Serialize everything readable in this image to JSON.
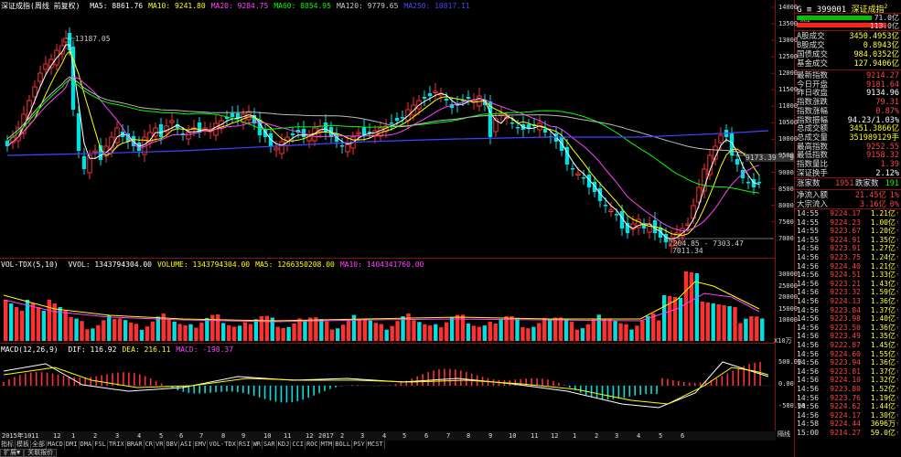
{
  "main": {
    "title": "深证成指(周线 前复权)",
    "ma": [
      {
        "label": "MA5: 8861.76",
        "color": "#ffffff"
      },
      {
        "label": "MA10: 9241.80",
        "color": "#ffff00"
      },
      {
        "label": "MA20: 9284.75",
        "color": "#ff44ff"
      },
      {
        "label": "MA60: 8854.95",
        "color": "#00ff00"
      },
      {
        "label": "MA120: 9779.65",
        "color": "#cccccc"
      },
      {
        "label": "MA250: 10817.11",
        "color": "#4444ff"
      }
    ],
    "y_labels": [
      "14000",
      "13500",
      "13000",
      "12500",
      "12000",
      "11500",
      "11000",
      "10500",
      "10000",
      "9500",
      "9000",
      "8500",
      "8000",
      "7500",
      "7000"
    ],
    "annot_high": "13187.05",
    "annot_low1": "7204.85 - 7303.47",
    "annot_low2": "7011.34",
    "annot_right": "9173.39 - 9333"
  },
  "vol": {
    "title": "VOL-TDX(5,10)",
    "labels": [
      {
        "label": "VVOL: 1343794304.00",
        "color": "#ffffff"
      },
      {
        "label": "VOLUME: 1343794304.00",
        "color": "#ffff00"
      },
      {
        "label": "MA5: 1266350208.00",
        "color": "#ffff00"
      },
      {
        "label": "MA10: 1404341760.00",
        "color": "#ff44ff"
      }
    ],
    "y_labels": [
      "30000",
      "25000",
      "20000",
      "15000",
      "10000"
    ],
    "unit": "X10万"
  },
  "macd": {
    "title": "MACD(12,26,9)",
    "labels": [
      {
        "label": "DIF: 116.92",
        "color": "#ffffff"
      },
      {
        "label": "DEA: 216.11",
        "color": "#ffff00"
      },
      {
        "label": "MACD: -198.37",
        "color": "#ff44ff"
      }
    ],
    "y_labels": [
      "500.00",
      "0.00",
      "-500.00"
    ]
  },
  "x_axis": [
    "2015年10",
    "11",
    "12",
    "1",
    "2",
    "3",
    "4",
    "5",
    "6",
    "7",
    "8",
    "9",
    "10",
    "11",
    "12",
    "2017",
    "2",
    "3",
    "4",
    "5",
    "6",
    "7",
    "8",
    "9",
    "10",
    "11",
    "12",
    "1",
    "2",
    "3",
    "4",
    "5",
    "6"
  ],
  "toolbar": [
    "指标",
    "模板",
    "全部",
    "MACD",
    "DMI",
    "DMA",
    "FSL",
    "TRIX",
    "BRAR",
    "CR",
    "VR",
    "OBV",
    "ASI",
    "EMV",
    "VOL-TDX",
    "RSI",
    "WR",
    "SAR",
    "KDJ",
    "CCI",
    "ROC",
    "MTM",
    "BOLL",
    "PSY",
    "MCST"
  ],
  "bottom_tabs": [
    "扩展▼",
    "关联报价"
  ],
  "right_label": "隔线",
  "panel": {
    "code_prefix": "G ≡",
    "code": "399001",
    "name": "深证成指",
    "superscript": "2",
    "tag": "X02",
    "ratio_top": "71.0",
    "ratio_bot": "113.0",
    "ratio_top_unit": "亿",
    "ratio_bot_unit": "亿",
    "block1": [
      {
        "label": "A股成交",
        "value": "3450.4953亿"
      },
      {
        "label": "B股成交",
        "value": "0.8943亿"
      },
      {
        "label": "国债成交",
        "value": "984.0352亿"
      },
      {
        "label": "基金成交",
        "value": "127.9406亿"
      }
    ],
    "block2": [
      {
        "label": "最新指数",
        "value": "9214.27",
        "color": "#ff4444"
      },
      {
        "label": "今日开盘",
        "value": "9181.64",
        "color": "#ff4444"
      },
      {
        "label": "昨日收盘",
        "value": "9134.96",
        "color": "#ffffff"
      },
      {
        "label": "指数涨跌",
        "value": "79.31",
        "color": "#ff4444"
      },
      {
        "label": "指数涨幅",
        "value": "0.87%",
        "color": "#ff4444"
      },
      {
        "label": "指数振幅",
        "value": "94.23/1.03%",
        "color": "#ffffff"
      },
      {
        "label": "总成交额",
        "value": "3451.3866亿",
        "color": "#ffff00"
      },
      {
        "label": "总成交量",
        "value": "351989129手",
        "color": "#ffff00"
      },
      {
        "label": "最高指数",
        "value": "9252.55",
        "color": "#ff4444"
      },
      {
        "label": "最低指数",
        "value": "9158.32",
        "color": "#ff4444"
      },
      {
        "label": "指数量比",
        "value": "1.39",
        "color": "#ff4444"
      },
      {
        "label": "深证换手",
        "value": "2.12%",
        "color": "#ffffff"
      }
    ],
    "updown": {
      "up_label": "涨家数",
      "up": "1951",
      "down_label": "跌家数",
      "down": "191"
    },
    "flow": [
      {
        "label": "净流入额",
        "value": "21.45亿",
        "pct": "1%"
      },
      {
        "label": "大宗流入",
        "value": "3.16亿",
        "pct": "0%"
      }
    ],
    "ticks": [
      {
        "t": "14:55",
        "p": "9224.17",
        "v": "1.21亿"
      },
      {
        "t": "14:55",
        "p": "9224.23",
        "v": "1.00亿"
      },
      {
        "t": "14:55",
        "p": "9223.67",
        "v": "1.20亿"
      },
      {
        "t": "14:55",
        "p": "9224.91",
        "v": "1.35亿"
      },
      {
        "t": "14:56",
        "p": "9223.91",
        "v": "1.27亿"
      },
      {
        "t": "14:56",
        "p": "9223.75",
        "v": "1.24亿"
      },
      {
        "t": "14:56",
        "p": "9224.40",
        "v": "1.21亿"
      },
      {
        "t": "14:56",
        "p": "9224.51",
        "v": "1.33亿"
      },
      {
        "t": "14:56",
        "p": "9223.21",
        "v": "1.43亿"
      },
      {
        "t": "14:56",
        "p": "9223.32",
        "v": "1.59亿"
      },
      {
        "t": "14:56",
        "p": "9224.13",
        "v": "1.36亿"
      },
      {
        "t": "14:56",
        "p": "9223.84",
        "v": "1.37亿"
      },
      {
        "t": "14:56",
        "p": "9223.98",
        "v": "1.40亿"
      },
      {
        "t": "14:56",
        "p": "9223.50",
        "v": "1.36亿"
      },
      {
        "t": "14:56",
        "p": "9223.49",
        "v": "1.35亿"
      },
      {
        "t": "14:56",
        "p": "9222.87",
        "v": "1.45亿"
      },
      {
        "t": "14:56",
        "p": "9224.60",
        "v": "1.55亿"
      },
      {
        "t": "14:56",
        "p": "9223.94",
        "v": "1.36亿"
      },
      {
        "t": "14:56",
        "p": "9223.81",
        "v": "1.37亿"
      },
      {
        "t": "14:56",
        "p": "9224.10",
        "v": "1.32亿"
      },
      {
        "t": "14:56",
        "p": "9223.80",
        "v": "1.52亿"
      },
      {
        "t": "14:56",
        "p": "9223.76",
        "v": "1.19亿"
      },
      {
        "t": "14:56",
        "p": "9224.62",
        "v": "1.44亿"
      },
      {
        "t": "14:56",
        "p": "9224.17",
        "v": "1.30亿"
      },
      {
        "t": "14:58",
        "p": "9224.44",
        "v": "3696万"
      },
      {
        "t": "15:00",
        "p": "9214.27",
        "v": "59.0亿"
      }
    ]
  }
}
